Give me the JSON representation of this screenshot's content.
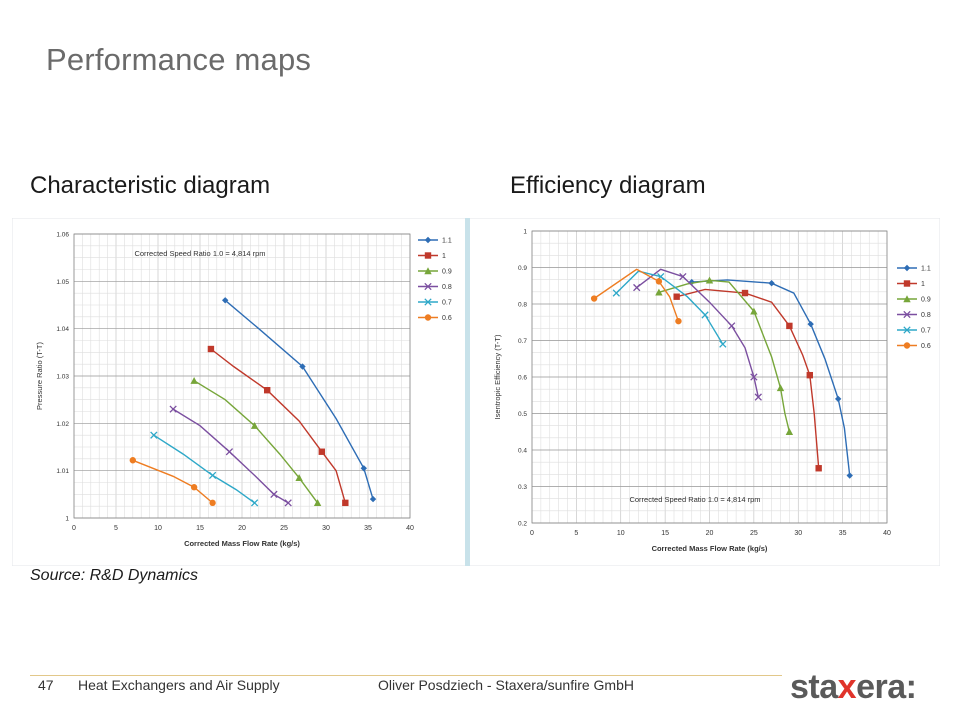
{
  "slide": {
    "title": "Performance maps",
    "left_heading": "Characteristic diagram",
    "right_heading": "Efficiency diagram",
    "source": "Source: R&D Dynamics"
  },
  "footer": {
    "page_number": "47",
    "section": "Heat Exchangers and Air Supply",
    "author": "Oliver Posdziech - Staxera/sunfire GmbH",
    "logo_prefix": "sta",
    "logo_x": "x",
    "logo_suffix": "era:"
  },
  "chart_data": [
    {
      "type": "line",
      "annotation": "Corrected Speed Ratio 1.0 = 4,814 rpm",
      "xlabel": "Corrected Mass Flow Rate (kg/s)",
      "ylabel": "Pressure Ratio (T-T)",
      "xlim": [
        0,
        40
      ],
      "ylim": [
        1,
        1.06
      ],
      "xticks": [
        0,
        5,
        10,
        15,
        20,
        25,
        30,
        35,
        40
      ],
      "yticks": [
        "1",
        "1.01",
        "1.02",
        "1.03",
        "1.04",
        "1.05",
        "1.06"
      ],
      "grid": true,
      "legend_position": "right",
      "series": [
        {
          "name": "1.1",
          "color": "#2e6db5",
          "marker": "diamond",
          "points": [
            [
              18,
              1.046
            ],
            [
              22,
              1.04
            ],
            [
              27.2,
              1.032
            ],
            [
              31.2,
              1.021
            ],
            [
              34.5,
              1.0105
            ],
            [
              35.6,
              1.004
            ]
          ]
        },
        {
          "name": "1",
          "color": "#c0392b",
          "marker": "square",
          "points": [
            [
              16.3,
              1.0357
            ],
            [
              19,
              1.032
            ],
            [
              23,
              1.027
            ],
            [
              26.8,
              1.0205
            ],
            [
              29.5,
              1.014
            ],
            [
              31.2,
              1.01
            ],
            [
              32.3,
              1.0032
            ]
          ]
        },
        {
          "name": "0.9",
          "color": "#77a63a",
          "marker": "triangle",
          "points": [
            [
              14.3,
              1.029
            ],
            [
              18,
              1.025
            ],
            [
              21.5,
              1.0195
            ],
            [
              24.5,
              1.0135
            ],
            [
              26.8,
              1.0085
            ],
            [
              29,
              1.0032
            ]
          ]
        },
        {
          "name": "0.8",
          "color": "#7b4fa0",
          "marker": "x",
          "points": [
            [
              11.8,
              1.023
            ],
            [
              15,
              1.0195
            ],
            [
              18.5,
              1.014
            ],
            [
              21.5,
              1.009
            ],
            [
              23.8,
              1.005
            ],
            [
              25.5,
              1.0032
            ]
          ]
        },
        {
          "name": "0.7",
          "color": "#2ea8c8",
          "marker": "x",
          "points": [
            [
              9.5,
              1.0175
            ],
            [
              13,
              1.0135
            ],
            [
              16.5,
              1.009
            ],
            [
              19.3,
              1.006
            ],
            [
              21.5,
              1.0032
            ]
          ]
        },
        {
          "name": "0.6",
          "color": "#ee7d22",
          "marker": "circle",
          "points": [
            [
              7,
              1.0122
            ],
            [
              11.8,
              1.0088
            ],
            [
              14.3,
              1.0065
            ],
            [
              16.5,
              1.0032
            ]
          ]
        }
      ]
    },
    {
      "type": "line",
      "annotation": "Corrected Speed Ratio 1.0 = 4,814 rpm",
      "xlabel": "Corrected Mass Flow Rate (kg/s)",
      "ylabel": "Isentropic Efficiency (T-T)",
      "xlim": [
        0,
        40
      ],
      "ylim": [
        0.2,
        1
      ],
      "xticks": [
        0,
        5,
        10,
        15,
        20,
        25,
        30,
        35,
        40
      ],
      "yticks": [
        "0.2",
        "0.3",
        "0.4",
        "0.5",
        "0.6",
        "0.7",
        "0.8",
        "0.9",
        "1"
      ],
      "grid": true,
      "legend_position": "right",
      "series": [
        {
          "name": "1.1",
          "color": "#2e6db5",
          "marker": "diamond",
          "points": [
            [
              18,
              0.86
            ],
            [
              22,
              0.866
            ],
            [
              27,
              0.857
            ],
            [
              29.5,
              0.83
            ],
            [
              31.4,
              0.745
            ],
            [
              33,
              0.65
            ],
            [
              34.5,
              0.54
            ],
            [
              35.2,
              0.46
            ],
            [
              35.8,
              0.33
            ]
          ]
        },
        {
          "name": "1",
          "color": "#c0392b",
          "marker": "square",
          "points": [
            [
              16.3,
              0.82
            ],
            [
              19.5,
              0.84
            ],
            [
              24,
              0.83
            ],
            [
              27,
              0.805
            ],
            [
              29,
              0.74
            ],
            [
              30.5,
              0.66
            ],
            [
              31.3,
              0.605
            ],
            [
              31.8,
              0.5
            ],
            [
              32.3,
              0.35
            ]
          ]
        },
        {
          "name": "0.9",
          "color": "#77a63a",
          "marker": "triangle",
          "points": [
            [
              14.3,
              0.832
            ],
            [
              17.5,
              0.855
            ],
            [
              20,
              0.865
            ],
            [
              22.2,
              0.86
            ],
            [
              25,
              0.78
            ],
            [
              27,
              0.655
            ],
            [
              28,
              0.57
            ],
            [
              28.5,
              0.5
            ],
            [
              29,
              0.45
            ]
          ]
        },
        {
          "name": "0.8",
          "color": "#7b4fa0",
          "marker": "x",
          "points": [
            [
              11.8,
              0.845
            ],
            [
              14.5,
              0.895
            ],
            [
              17,
              0.875
            ],
            [
              20,
              0.805
            ],
            [
              22.5,
              0.74
            ],
            [
              24,
              0.68
            ],
            [
              25,
              0.6
            ],
            [
              25.5,
              0.545
            ]
          ]
        },
        {
          "name": "0.7",
          "color": "#2ea8c8",
          "marker": "x",
          "points": [
            [
              9.5,
              0.83
            ],
            [
              12,
              0.89
            ],
            [
              14.5,
              0.875
            ],
            [
              17.5,
              0.82
            ],
            [
              19.5,
              0.77
            ],
            [
              21.5,
              0.69
            ]
          ]
        },
        {
          "name": "0.6",
          "color": "#ee7d22",
          "marker": "circle",
          "points": [
            [
              7,
              0.815
            ],
            [
              11.8,
              0.895
            ],
            [
              14.3,
              0.862
            ],
            [
              15.5,
              0.82
            ],
            [
              16.5,
              0.753
            ]
          ]
        }
      ]
    }
  ]
}
